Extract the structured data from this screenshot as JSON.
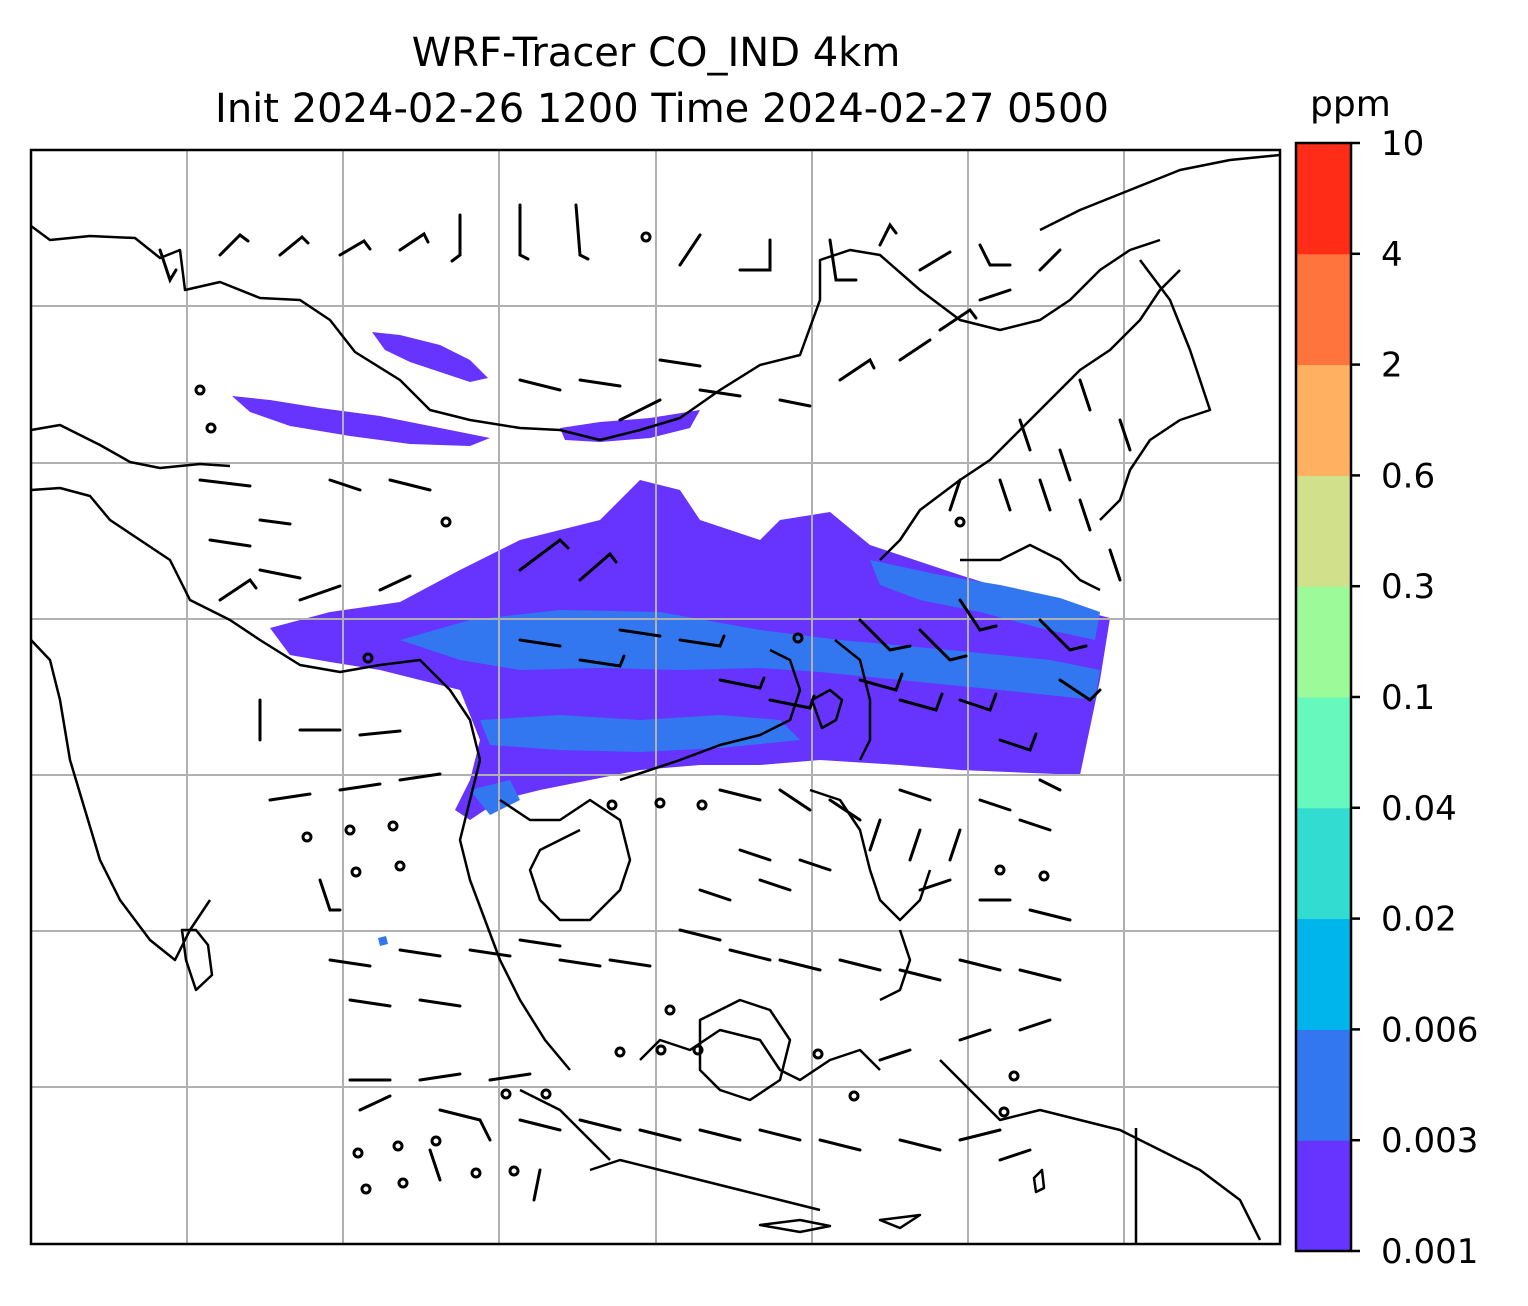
{
  "title": {
    "line1": "WRF-Tracer CO_IND 4km",
    "line2": "Init 2024-02-26 1200 Time 2024-02-27 0500"
  },
  "colorbar": {
    "unit": "ppm",
    "levels": [
      "0.001",
      "0.003",
      "0.006",
      "0.02",
      "0.04",
      "0.1",
      "0.3",
      "0.6",
      "2",
      "4",
      "10"
    ],
    "colors": [
      "#6633ff",
      "#3377f0",
      "#00b4ec",
      "#33dcd0",
      "#66f8bc",
      "#9cfa98",
      "#d1e08a",
      "#ffb060",
      "#ff743c",
      "#ff2d18"
    ]
  },
  "map": {
    "gridlines": true,
    "tracer_color_main": "#6633ff",
    "tracer_color_secondary": "#3377f0",
    "coastline_color": "#000000",
    "grid_color": "#b0b0b0"
  }
}
